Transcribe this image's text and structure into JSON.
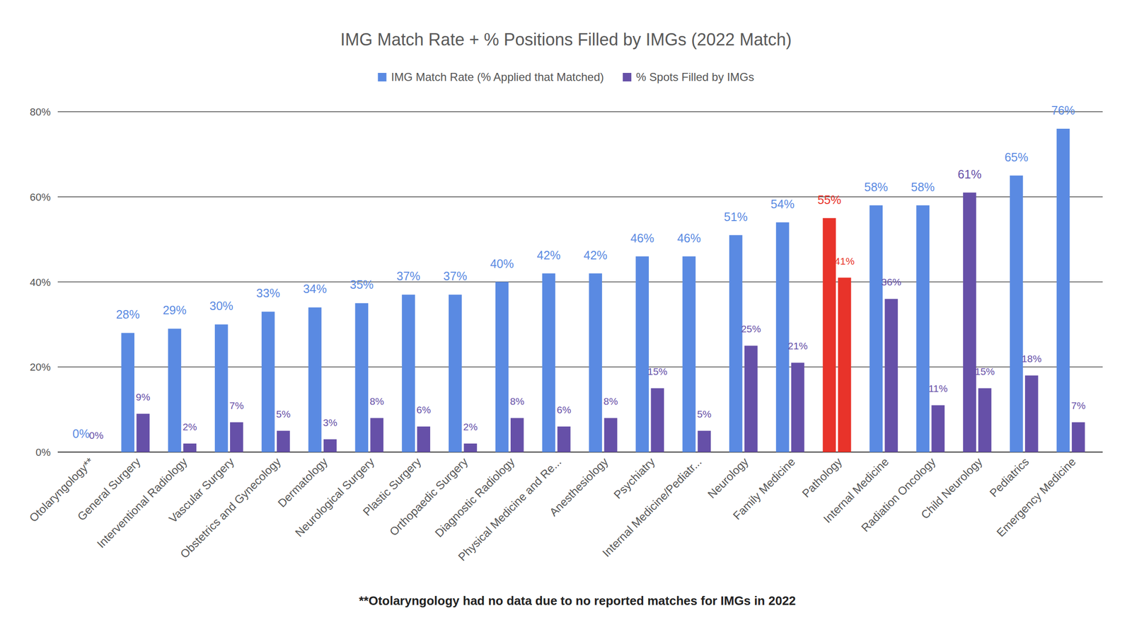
{
  "chart_data": {
    "type": "bar",
    "title": "IMG Match Rate + % Positions Filled by IMGs (2022 Match)",
    "annotation": "**Otolaryngology had no data due to no reported matches for IMGs in 2022",
    "categories": [
      "Otolaryngology**",
      "General Surgery",
      "Interventional Radiology",
      "Vascular Surgery",
      "Obstetrics and Gynecology",
      "Dermatology",
      "Neurological Surgery",
      "Plastic Surgery",
      "Orthopaedic Surgery",
      "Diagnostic Radiology",
      "Physical Medicine and Re...",
      "Anesthesiology",
      "Psychiatry",
      "Internal Medicine/Pediatr...",
      "Neurology",
      "Family Medicine",
      "Pathology",
      "Internal Medicine",
      "Radiation Oncology",
      "Child Neurology",
      "Pediatrics",
      "Emergency Medicine"
    ],
    "series": [
      {
        "name": "IMG Match Rate (% Applied that Matched)",
        "color": "#5a8ae2",
        "colors": [
          "#5a8ae2",
          "#5a8ae2",
          "#5a8ae2",
          "#5a8ae2",
          "#5a8ae2",
          "#5a8ae2",
          "#5a8ae2",
          "#5a8ae2",
          "#5a8ae2",
          "#5a8ae2",
          "#5a8ae2",
          "#5a8ae2",
          "#5a8ae2",
          "#5a8ae2",
          "#5a8ae2",
          "#5a8ae2",
          "#e8332a",
          "#5a8ae2",
          "#5a8ae2",
          "#6650a8",
          "#5a8ae2",
          "#5a8ae2"
        ],
        "values": [
          0,
          28,
          29,
          30,
          33,
          34,
          35,
          37,
          37,
          40,
          42,
          42,
          46,
          46,
          51,
          54,
          55,
          58,
          58,
          61,
          65,
          76
        ],
        "value_labels": [
          "0%",
          "28%",
          "29%",
          "30%",
          "33%",
          "34%",
          "35%",
          "37%",
          "37%",
          "40%",
          "42%",
          "42%",
          "46%",
          "46%",
          "51%",
          "54%",
          "55%",
          "58%",
          "58%",
          "61%",
          "65%",
          "76%"
        ]
      },
      {
        "name": "% Spots Filled by IMGs",
        "color": "#6650a8",
        "colors": [
          "#6650a8",
          "#6650a8",
          "#6650a8",
          "#6650a8",
          "#6650a8",
          "#6650a8",
          "#6650a8",
          "#6650a8",
          "#6650a8",
          "#6650a8",
          "#6650a8",
          "#6650a8",
          "#6650a8",
          "#6650a8",
          "#6650a8",
          "#6650a8",
          "#e8332a",
          "#6650a8",
          "#6650a8",
          "#6650a8",
          "#6650a8",
          "#6650a8"
        ],
        "values": [
          0,
          9,
          2,
          7,
          5,
          3,
          8,
          6,
          2,
          8,
          6,
          8,
          15,
          5,
          25,
          21,
          41,
          36,
          11,
          15,
          18,
          7
        ],
        "value_labels": [
          "0%",
          "9%",
          "2%",
          "7%",
          "5%",
          "3%",
          "8%",
          "6%",
          "2%",
          "8%",
          "6%",
          "8%",
          "15%",
          "5%",
          "25%",
          "21%",
          "41%",
          "36%",
          "11%",
          "15%",
          "18%",
          "7%"
        ]
      }
    ],
    "ylim": [
      0,
      80
    ],
    "yticks": [
      {
        "value": 0,
        "label": "0%"
      },
      {
        "value": 20,
        "label": "20%"
      },
      {
        "value": 40,
        "label": "40%"
      },
      {
        "value": 60,
        "label": "60%"
      },
      {
        "value": 80,
        "label": "80%"
      }
    ],
    "grid": true,
    "legend": "top",
    "data_labels": true
  }
}
